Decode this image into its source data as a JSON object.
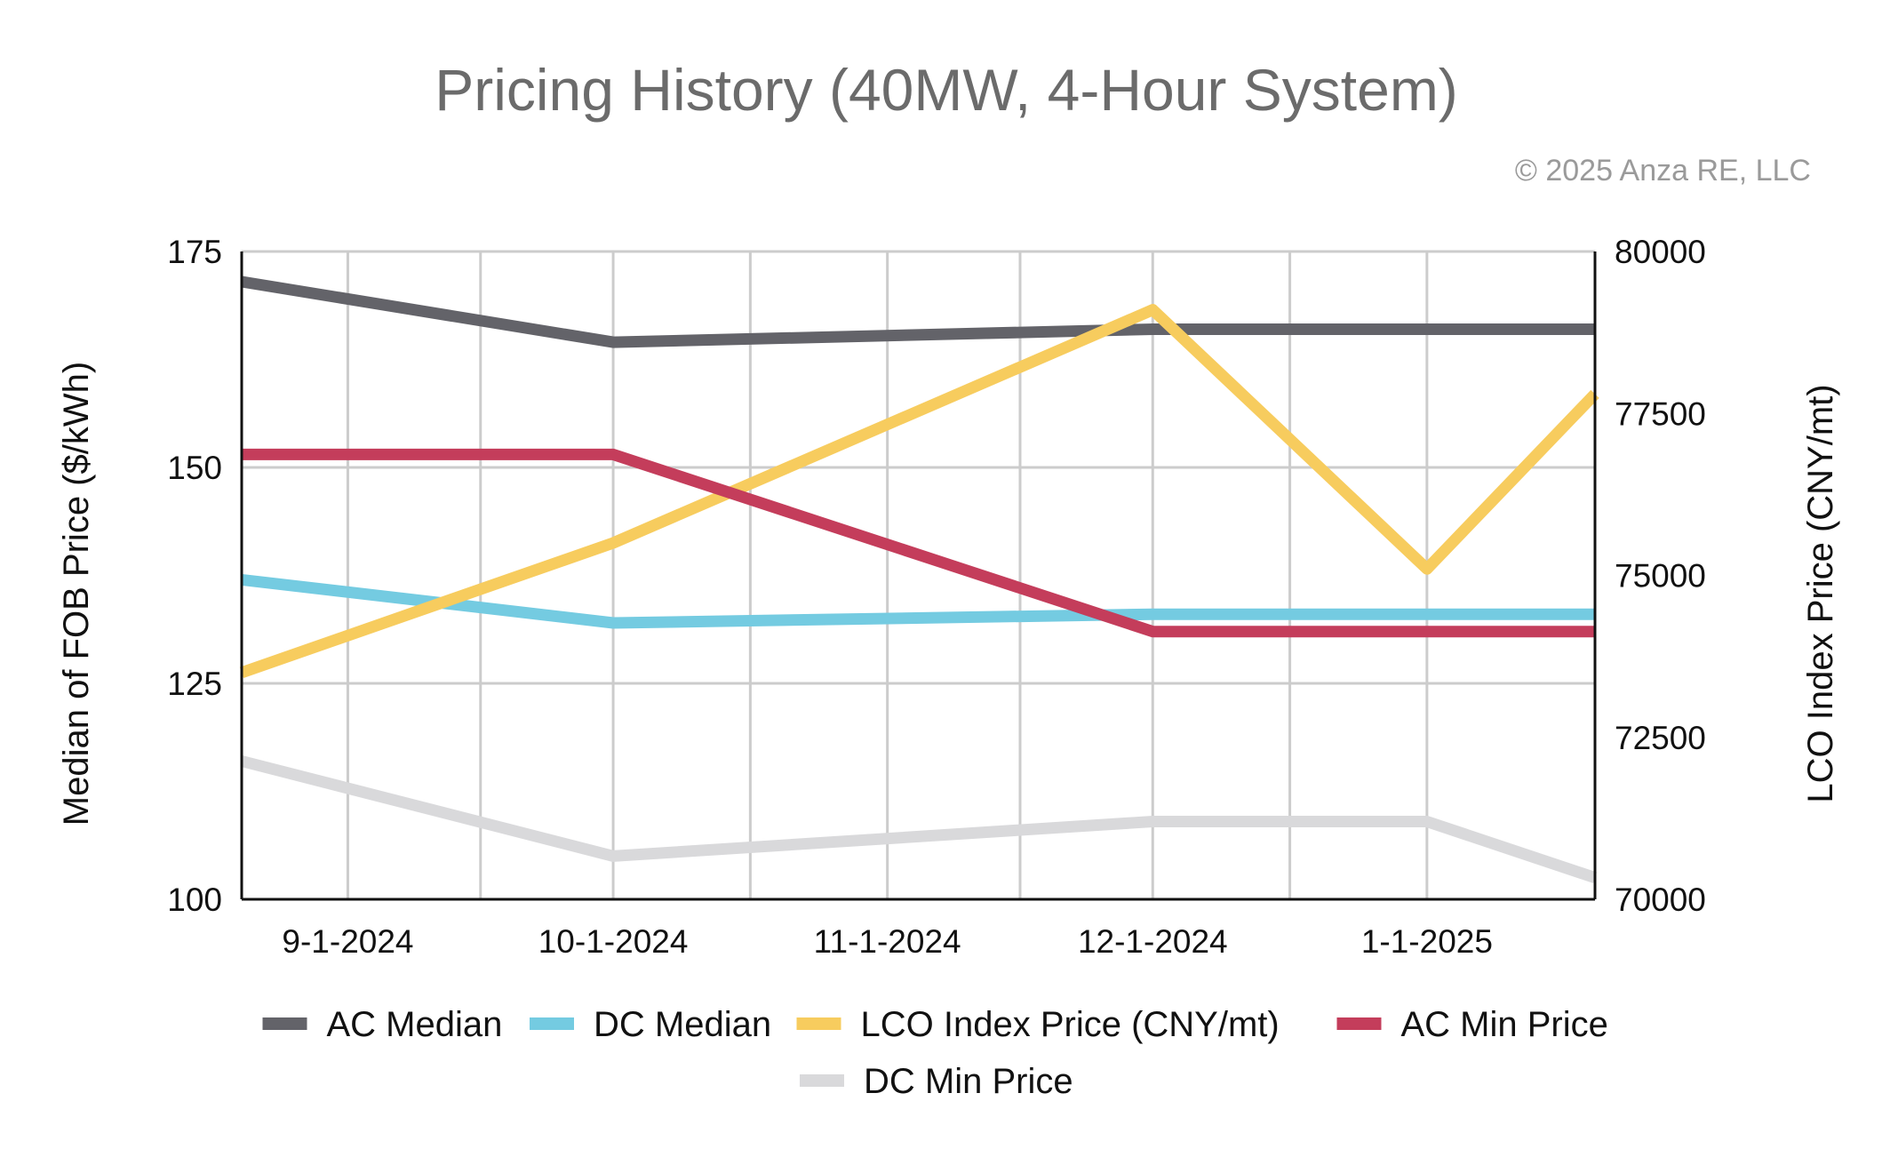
{
  "chart_data": {
    "type": "line",
    "title": "Pricing History (40MW, 4-Hour System)",
    "copyright": "© 2025 Anza RE, LLC",
    "xlabel": "",
    "ylabel": "Median of FOB Price ($/kWh)",
    "y2label": "LCO Index Price (CNY/mt)",
    "ylim": [
      100,
      175
    ],
    "y2lim": [
      70000,
      80000
    ],
    "yticks": [
      "100",
      "125",
      "150",
      "175"
    ],
    "y2ticks": [
      "70000",
      "72500",
      "75000",
      "77500",
      "80000"
    ],
    "x_range_days": [
      -12,
      141
    ],
    "x_ticks": [
      {
        "label": "9-1-2024",
        "day": 0
      },
      {
        "label": "10-1-2024",
        "day": 30
      },
      {
        "label": "11-1-2024",
        "day": 61
      },
      {
        "label": "12-1-2024",
        "day": 91
      },
      {
        "label": "1-1-2025",
        "day": 122
      }
    ],
    "grid": true,
    "legend_position": "bottom",
    "series": [
      {
        "name": "AC Median",
        "color": "#636369",
        "axis": "left",
        "points": [
          [
            -12,
            171.5
          ],
          [
            30,
            164.5
          ],
          [
            91,
            166
          ],
          [
            141,
            166
          ]
        ]
      },
      {
        "name": "DC Median",
        "color": "#74cbe1",
        "axis": "left",
        "points": [
          [
            -12,
            137
          ],
          [
            30,
            132
          ],
          [
            91,
            133
          ],
          [
            141,
            133
          ]
        ]
      },
      {
        "name": "LCO Index Price (CNY/mt)",
        "color": "#f7cc5e",
        "axis": "right",
        "points": [
          [
            -12,
            73500
          ],
          [
            30,
            75500
          ],
          [
            91,
            79100
          ],
          [
            122,
            75100
          ],
          [
            141,
            77800
          ]
        ]
      },
      {
        "name": "AC Min Price",
        "color": "#c43d5b",
        "axis": "left",
        "points": [
          [
            -12,
            151.5
          ],
          [
            30,
            151.5
          ],
          [
            91,
            131
          ],
          [
            141,
            131
          ]
        ]
      },
      {
        "name": "DC Min Price",
        "color": "#d9d9db",
        "axis": "left",
        "points": [
          [
            -12,
            116
          ],
          [
            30,
            105
          ],
          [
            91,
            109
          ],
          [
            122,
            109
          ],
          [
            141,
            102.5
          ]
        ]
      }
    ]
  }
}
